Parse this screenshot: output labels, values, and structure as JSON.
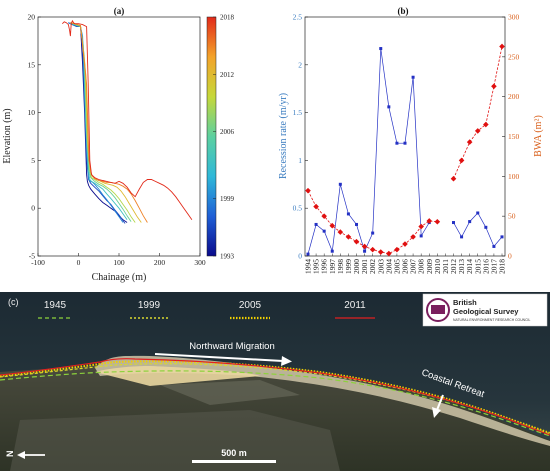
{
  "chart_data": [
    {
      "type": "line",
      "panel_label": "(a)",
      "xlabel": "Chainage (m)",
      "ylabel": "Elevation (m)",
      "xlim": [
        -100,
        300
      ],
      "ylim": [
        -5,
        20
      ],
      "xticks": [
        "-100",
        "0",
        "100",
        "200",
        "300"
      ],
      "yticks": [
        "-5",
        "0",
        "5",
        "10",
        "15",
        "20"
      ],
      "grid": false,
      "colorbar": {
        "min": 1993,
        "max": 2018,
        "ticks": [
          "2018",
          "2012",
          "2006",
          "1999",
          "1993"
        ],
        "colors": [
          "#0a0a8c",
          "#1f5fd6",
          "#2fb8d8",
          "#5cd0a0",
          "#c6d83a",
          "#f3a32a",
          "#e22a1a"
        ]
      },
      "series": [
        {
          "year": 1993,
          "x": [
            -25,
            -20,
            -15,
            -10,
            5,
            10,
            15,
            18,
            20,
            22,
            25,
            30,
            40,
            50,
            60,
            70,
            80,
            90,
            100,
            110,
            120
          ],
          "y": [
            19.4,
            19.3,
            19.2,
            19.1,
            19.1,
            15,
            10,
            6,
            3.5,
            2.8,
            2.4,
            2,
            1.5,
            1,
            0.6,
            0.3,
            0,
            -0.3,
            -0.8,
            -1.2,
            -1.5
          ]
        },
        {
          "year": 1996,
          "x": [
            -25,
            -15,
            -5,
            5,
            10,
            15,
            20,
            25,
            30,
            40,
            50,
            60,
            70,
            80,
            90,
            100,
            110,
            115
          ],
          "y": [
            19.4,
            19.2,
            19,
            19,
            17,
            11,
            5,
            3,
            2.6,
            2.2,
            1.8,
            1.3,
            0.8,
            0.4,
            -0.2,
            -0.7,
            -1.3,
            -1.6
          ]
        },
        {
          "year": 1999,
          "x": [
            -25,
            -15,
            -5,
            5,
            10,
            15,
            20,
            25,
            30,
            35,
            40,
            50,
            60,
            70,
            80,
            90,
            100,
            110
          ],
          "y": [
            19.4,
            19.2,
            19.1,
            19,
            18,
            12,
            6,
            3,
            2.8,
            2.7,
            2.5,
            2,
            1.4,
            0.9,
            0.3,
            -0.3,
            -0.9,
            -1.5
          ]
        },
        {
          "year": 2003,
          "x": [
            -20,
            -10,
            5,
            12,
            18,
            24,
            28,
            32,
            40,
            50,
            60,
            70,
            80,
            90,
            100,
            110,
            120
          ],
          "y": [
            19.4,
            19.2,
            19,
            17,
            9,
            4,
            3,
            2.8,
            2.6,
            2.3,
            2,
            1.5,
            1,
            0.5,
            0,
            -0.6,
            -1.2
          ]
        },
        {
          "year": 2006,
          "x": [
            -20,
            -10,
            5,
            14,
            20,
            26,
            30,
            35,
            40,
            50,
            60,
            70,
            80,
            90,
            100,
            110,
            120,
            130
          ],
          "y": [
            19.4,
            19.2,
            19,
            16,
            8,
            4,
            3.2,
            3,
            2.8,
            2.5,
            2.3,
            2,
            1.6,
            1.1,
            0.5,
            -0.1,
            -0.8,
            -1.4
          ]
        },
        {
          "year": 2009,
          "x": [
            -20,
            -10,
            5,
            16,
            22,
            28,
            32,
            40,
            50,
            60,
            70,
            80,
            90,
            100,
            110,
            120,
            130,
            140
          ],
          "y": [
            19.4,
            19.3,
            19.1,
            15,
            7,
            4,
            3.2,
            3,
            2.7,
            2.5,
            2.2,
            1.9,
            1.5,
            1,
            0.4,
            -0.2,
            -0.9,
            -1.5
          ]
        },
        {
          "year": 2012,
          "x": [
            -20,
            -10,
            5,
            18,
            24,
            30,
            35,
            45,
            55,
            65,
            75,
            85,
            95,
            105,
            115,
            125,
            135,
            145,
            155
          ],
          "y": [
            19.4,
            19.3,
            19.1,
            14,
            6,
            3.8,
            3.3,
            3,
            2.8,
            2.6,
            2.5,
            2.4,
            2.2,
            1.8,
            1.2,
            0.5,
            -0.2,
            -0.9,
            -1.5
          ]
        },
        {
          "year": 2015,
          "x": [
            -20,
            -10,
            5,
            20,
            26,
            32,
            40,
            50,
            60,
            70,
            80,
            90,
            100,
            110,
            120,
            130,
            140,
            150,
            160,
            170
          ],
          "y": [
            19.4,
            19.3,
            19.1,
            13,
            5,
            3.5,
            3.1,
            2.9,
            2.8,
            2.7,
            2.7,
            2.6,
            2.5,
            2.3,
            2,
            1.5,
            0.8,
            0,
            -0.8,
            -1.5
          ]
        },
        {
          "year": 2018,
          "x": [
            -40,
            -35,
            -30,
            -25,
            -22,
            -20,
            -18,
            -15,
            -12,
            -10,
            0,
            10,
            20,
            24,
            28,
            32,
            40,
            50,
            60,
            70,
            80,
            90,
            100,
            110,
            120,
            130,
            140,
            150,
            160,
            170,
            180,
            190,
            200,
            210,
            220,
            230,
            240,
            250,
            260,
            270,
            280
          ],
          "y": [
            19.3,
            19.5,
            19.4,
            19.2,
            18.6,
            18,
            19.3,
            19.6,
            19.4,
            19.3,
            19.3,
            19.2,
            19,
            13,
            5,
            3.5,
            3.2,
            3,
            2.9,
            2.8,
            2.7,
            2.6,
            2.8,
            2.6,
            2.2,
            1.6,
            1.2,
            2,
            2.7,
            3,
            3,
            2.8,
            2.6,
            2.4,
            2.1,
            1.7,
            1.2,
            0.6,
            0,
            -0.6,
            -1.2
          ]
        }
      ]
    },
    {
      "type": "line",
      "panel_label": "(b)",
      "ylabel": "Recession rate (m/yr)",
      "ylabel_right": "BWA (m²)",
      "categories": [
        "1994",
        "1995",
        "1996",
        "1997",
        "1998",
        "1999",
        "2000",
        "2001",
        "2002",
        "2003",
        "2004",
        "2005",
        "2006",
        "2007",
        "2008",
        "2009",
        "2010",
        "2011",
        "2012",
        "2013",
        "2014",
        "2015",
        "2016",
        "2017",
        "2018"
      ],
      "ylim": [
        0,
        2.5
      ],
      "ylim_right": [
        0,
        300
      ],
      "yticks": [
        "0",
        "0.5",
        "1",
        "1.5",
        "2",
        "2.5"
      ],
      "yticks_right": [
        "0",
        "50",
        "100",
        "150",
        "200",
        "250",
        "300"
      ],
      "series": [
        {
          "name": "Recession rate",
          "axis": "left",
          "color": "#2431c4",
          "values": [
            0.02,
            0.33,
            0.26,
            0.05,
            0.75,
            0.44,
            0.33,
            0.05,
            0.24,
            2.17,
            1.56,
            1.18,
            1.18,
            1.87,
            0.21,
            0.35,
            null,
            null,
            0.35,
            0.2,
            0.36,
            0.45,
            0.3,
            0.1,
            0.2
          ]
        },
        {
          "name": "BWA",
          "axis": "right",
          "color": "#e01010",
          "values": [
            82,
            62,
            50,
            38,
            30,
            24,
            18,
            12,
            8,
            5,
            3,
            8,
            15,
            24,
            37,
            44,
            43,
            null,
            97,
            120,
            143,
            157,
            165,
            213,
            263
          ]
        }
      ]
    }
  ],
  "photo": {
    "panel_label": "(c)",
    "legend": [
      {
        "year": "1945",
        "color": "#8cd23c"
      },
      {
        "year": "1999",
        "color": "#d8d830"
      },
      {
        "year": "2005",
        "color": "#f0d000"
      },
      {
        "year": "2011",
        "color": "#e02020"
      }
    ],
    "annotations": {
      "migration": "Northward Migration",
      "retreat": "Coastal Retreat",
      "north": "N",
      "scale": "500 m"
    },
    "logo": {
      "line1": "British",
      "line2": "Geological Survey",
      "line3": "NATURAL ENVIRONMENT RESEARCH COUNCIL"
    }
  }
}
